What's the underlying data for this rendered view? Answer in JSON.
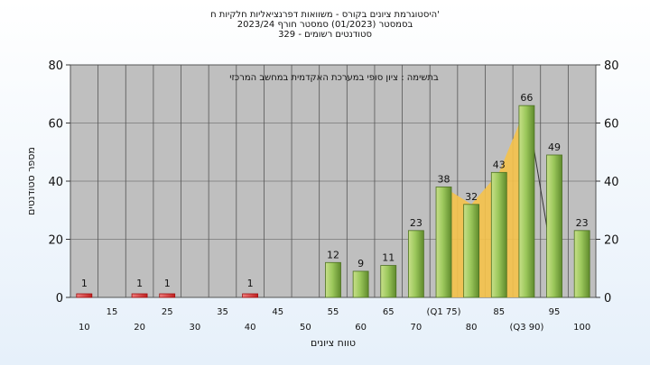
{
  "header": {
    "title_line1": "היסטוגרמת ציונים בקורס - משוואות דפרנציאליות חלקיות ח'",
    "title_line2": "בסמסטר (01/2023) סמסטר חורף 2023/24",
    "title_line3": "סטודנטים רשומים - 329"
  },
  "chart_data": {
    "type": "bar",
    "categories": [
      "10",
      "15",
      "20",
      "25",
      "30",
      "35",
      "40",
      "45",
      "50",
      "55",
      "60",
      "65",
      "70",
      "(Q1 75)",
      "80",
      "85",
      "(Q3 90)",
      "95",
      "100"
    ],
    "values": [
      1,
      0,
      1,
      1,
      0,
      0,
      1,
      0,
      0,
      12,
      9,
      11,
      23,
      38,
      32,
      43,
      66,
      49,
      23
    ],
    "xlabel": "טווח ציונים",
    "ylabel": "מספר סטודנטים",
    "ylim": [
      0,
      80
    ],
    "yticks": [
      0,
      20,
      40,
      60,
      80
    ],
    "annotation": "בתשימה : ציון סופי במערכת האקדמית במחשב המרכזי",
    "grid": true,
    "colors": {
      "bar": "#8fc050",
      "bar_low": "#e04040",
      "quartile_area": "#f5c24a",
      "plot_bg": "#bfbfbf"
    }
  }
}
